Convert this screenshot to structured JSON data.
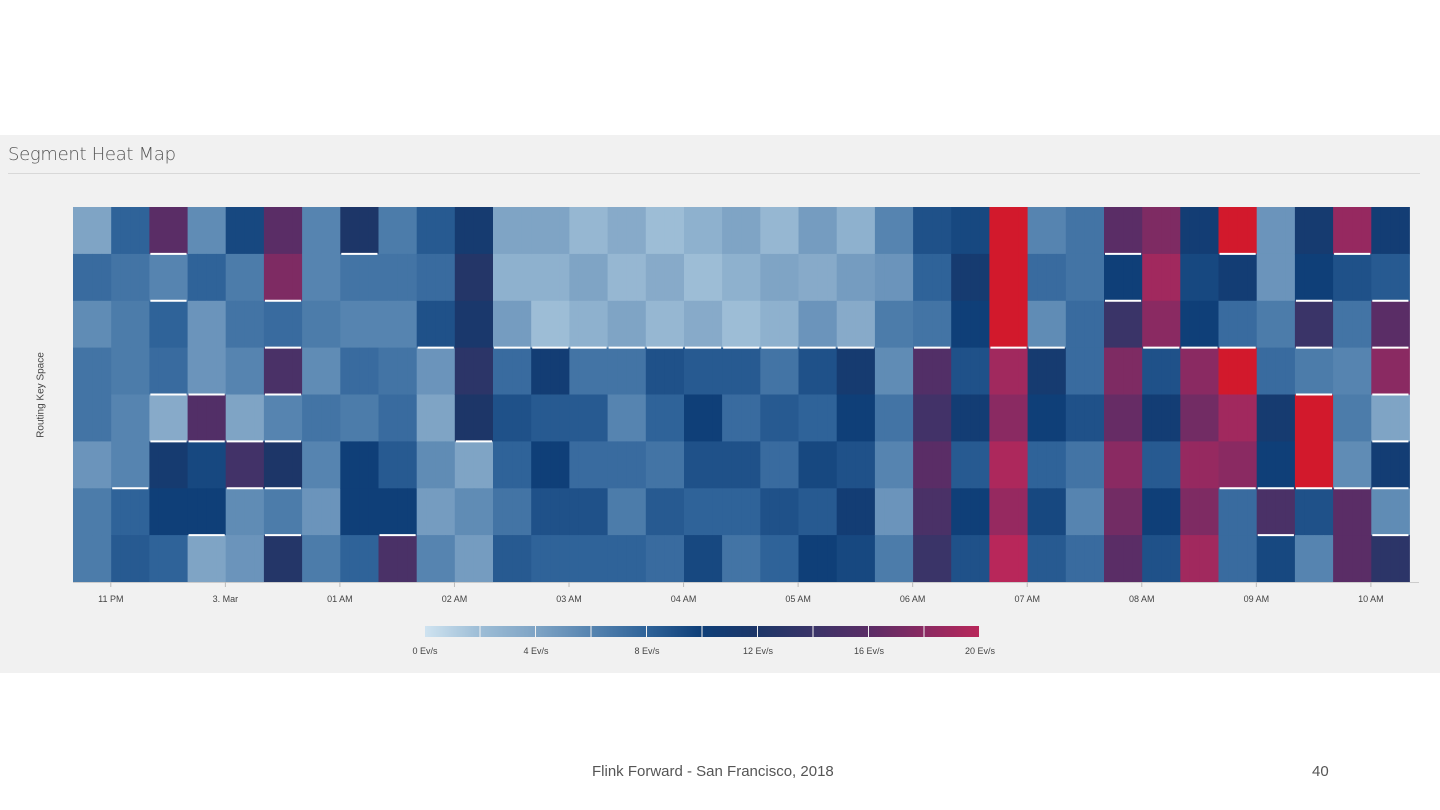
{
  "slide": {
    "footer": "Flink Forward - San Francisco, 2018",
    "page_number": "40"
  },
  "chart_data": {
    "type": "heatmap",
    "title": "Segment Heat Map",
    "xlabel": "",
    "ylabel": "Routing Key Space",
    "x_domain_hours": [
      22.67,
      34.42
    ],
    "x_ticks": [
      {
        "hour": 23,
        "label": "11 PM"
      },
      {
        "hour": 24,
        "label": "3. Mar"
      },
      {
        "hour": 25,
        "label": "01 AM"
      },
      {
        "hour": 26,
        "label": "02 AM"
      },
      {
        "hour": 27,
        "label": "03 AM"
      },
      {
        "hour": 28,
        "label": "04 AM"
      },
      {
        "hour": 29,
        "label": "05 AM"
      },
      {
        "hour": 30,
        "label": "06 AM"
      },
      {
        "hour": 31,
        "label": "07 AM"
      },
      {
        "hour": 32,
        "label": "08 AM"
      },
      {
        "hour": 33,
        "label": "09 AM"
      },
      {
        "hour": 34,
        "label": "10 AM"
      }
    ],
    "column_minutes": 20,
    "rows": 8,
    "unit": "Ev/s",
    "values_by_column": [
      [
        5,
        7,
        6,
        6,
        7,
        6,
        6,
        7
      ],
      [
        8,
        8,
        6,
        7,
        5,
        6,
        9,
        8
      ],
      [
        15,
        6,
        9,
        7,
        4,
        10,
        10,
        9
      ],
      [
        6,
        7,
        5,
        6,
        15,
        10,
        9,
        4
      ],
      [
        9,
        7,
        6,
        6,
        5,
        14,
        6,
        4
      ],
      [
        17,
        17,
        8,
        14,
        6,
        13,
        6,
        13
      ],
      [
        6,
        7,
        6,
        6,
        6,
        6,
        6,
        6
      ],
      [
        11,
        7,
        7,
        7,
        7,
        9,
        10,
        9
      ],
      [
        7,
        6,
        6,
        8,
        7,
        9,
        9,
        15
      ],
      [
        8,
        8,
        8,
        5,
        5,
        5,
        5,
        5
      ],
      [
        12,
        12,
        12,
        12,
        12,
        5,
        5,
        5
      ],
      [
        4,
        4,
        4,
        8,
        8,
        8,
        8,
        8
      ],
      [
        3,
        3,
        3,
        10,
        9,
        9,
        9,
        9
      ],
      [
        3,
        3,
        3,
        8,
        8,
        8,
        8,
        8
      ],
      [
        3,
        3,
        3,
        7,
        7,
        7,
        7,
        7
      ],
      [
        3,
        3,
        3,
        8,
        8,
        8,
        8,
        8
      ],
      [
        3,
        3,
        3,
        9,
        9,
        9,
        9,
        9
      ],
      [
        3,
        3,
        3,
        8,
        8,
        8,
        8,
        8
      ],
      [
        3,
        3,
        3,
        8,
        8,
        8,
        8,
        8
      ],
      [
        4,
        4,
        4,
        9,
        9,
        9,
        9,
        9
      ],
      [
        4,
        4,
        4,
        10,
        10,
        10,
        10,
        10
      ],
      [
        6,
        6,
        6,
        6,
        6,
        6,
        6,
        6
      ],
      [
        8,
        8,
        8,
        15,
        15,
        15,
        15,
        15
      ],
      [
        10,
        10,
        10,
        10,
        10,
        9,
        9,
        9
      ],
      [
        22,
        22,
        22,
        19,
        19,
        19,
        19,
        19
      ],
      [
        7,
        7,
        6,
        10,
        10,
        9,
        9,
        9
      ],
      [
        7,
        8,
        7,
        8,
        8,
        7,
        7,
        7
      ],
      [
        15,
        10,
        15,
        17,
        17,
        17,
        17,
        17
      ],
      [
        18,
        18,
        18,
        10,
        10,
        9,
        9,
        9
      ],
      [
        10,
        10,
        9,
        18,
        18,
        18,
        18,
        18
      ],
      [
        22,
        10,
        8,
        20,
        19,
        19,
        7,
        8
      ],
      [
        5,
        6,
        6,
        8,
        10,
        10,
        16,
        9
      ],
      [
        10,
        10,
        15,
        6,
        22,
        22,
        9,
        7
      ],
      [
        19,
        8,
        7,
        7,
        6,
        6,
        15,
        16
      ],
      [
        10,
        9,
        15,
        18,
        5,
        10,
        6,
        12
      ]
    ],
    "legend": {
      "stops": [
        0,
        2,
        4,
        6,
        8,
        10,
        12,
        14,
        16,
        18,
        20
      ],
      "colors": [
        "#cfe3f0",
        "#9dbdd6",
        "#7fa4c5",
        "#5684b0",
        "#2f6399",
        "#0f3f78",
        "#1d3668",
        "#3a3468",
        "#5a2d66",
        "#8a2a62",
        "#b8275a"
      ],
      "over_color": "#d2192c",
      "labels": [
        "0 Ev/s",
        "4 Ev/s",
        "8 Ev/s",
        "12 Ev/s",
        "16 Ev/s",
        "20 Ev/s"
      ]
    }
  }
}
